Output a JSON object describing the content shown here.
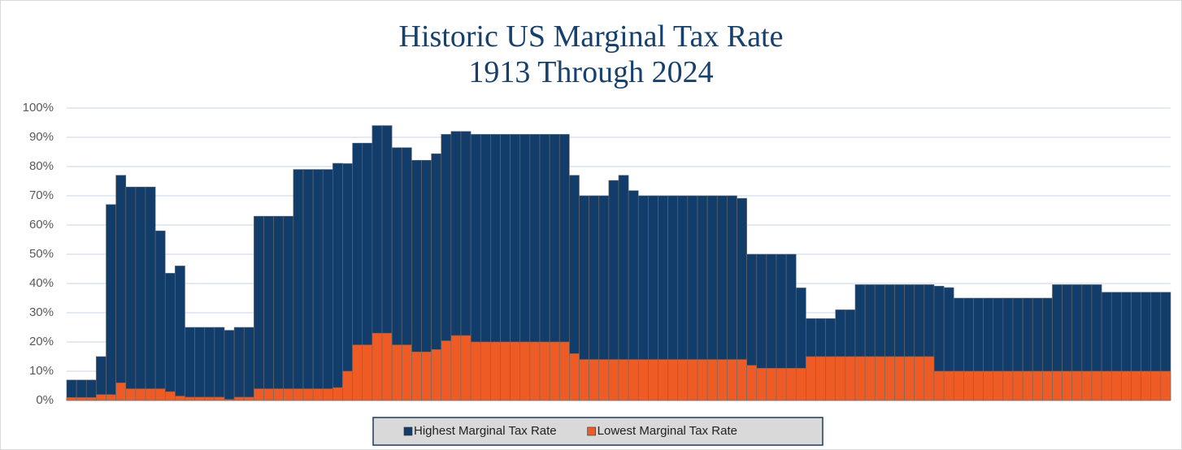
{
  "chart_data": {
    "type": "bar",
    "title": "Historic US Marginal Tax Rate",
    "subtitle": "1913 Through 2024",
    "categories": [
      null,
      null,
      null,
      null,
      null,
      null,
      null,
      null,
      null,
      null,
      null,
      null,
      null,
      null,
      null,
      null,
      null,
      null,
      null,
      null,
      null,
      null,
      null,
      null,
      null,
      null,
      null,
      null,
      null,
      null,
      null,
      null,
      null,
      null,
      null,
      null,
      null,
      null,
      null,
      null,
      null,
      null,
      null,
      null,
      null,
      null,
      null,
      null,
      null,
      null,
      null,
      null,
      null,
      null,
      null,
      null,
      null,
      null,
      null,
      null,
      null,
      null,
      null,
      null,
      null,
      null,
      null,
      null,
      null,
      null,
      null,
      null,
      null,
      null,
      null,
      null,
      null,
      null,
      null,
      null,
      null,
      null,
      null,
      null,
      null,
      null,
      null,
      null,
      null,
      null,
      null,
      null,
      null,
      null,
      null,
      null,
      null,
      null,
      null,
      null,
      null,
      null,
      null,
      null,
      null,
      null,
      null,
      null,
      null,
      null,
      null,
      null
    ],
    "series": [
      {
        "name": "Highest Marginal Tax Rate",
        "color": "#123d6b",
        "values": [
          7,
          7,
          7,
          15,
          67,
          77,
          73,
          73,
          73,
          58,
          43.5,
          46,
          25,
          25,
          25,
          25,
          24,
          25,
          25,
          63,
          63,
          63,
          63,
          79,
          79,
          79,
          79,
          81.1,
          81,
          88,
          88,
          94,
          94,
          86.45,
          86.45,
          82.13,
          82.13,
          84.36,
          91,
          92,
          92,
          91,
          91,
          91,
          91,
          91,
          91,
          91,
          91,
          91,
          91,
          77,
          70,
          70,
          70,
          75.25,
          77,
          71.75,
          70,
          70,
          70,
          70,
          70,
          70,
          70,
          70,
          70,
          70,
          69.13,
          50,
          50,
          50,
          50,
          50,
          38.5,
          28,
          28,
          28,
          31,
          31,
          39.6,
          39.6,
          39.6,
          39.6,
          39.6,
          39.6,
          39.6,
          39.6,
          39.1,
          38.6,
          35,
          35,
          35,
          35,
          35,
          35,
          35,
          35,
          35,
          35,
          39.6,
          39.6,
          39.6,
          39.6,
          39.6,
          37,
          37,
          37,
          37,
          37,
          37,
          37
        ]
      },
      {
        "name": "Lowest Marginal Tax Rate",
        "color": "#ef5b25",
        "values": [
          1,
          1,
          1,
          2,
          2,
          6,
          4,
          4,
          4,
          4,
          3,
          1.5,
          1.125,
          1.125,
          1.125,
          1.125,
          0.375,
          1.125,
          1.125,
          4,
          4,
          4,
          4,
          4,
          4,
          4,
          4,
          4.4,
          10,
          19,
          19,
          23,
          23,
          19,
          19,
          16.6,
          16.6,
          17.4,
          20.4,
          22.2,
          22.2,
          20,
          20,
          20,
          20,
          20,
          20,
          20,
          20,
          20,
          20,
          16,
          14,
          14,
          14,
          14,
          14,
          14,
          14,
          14,
          14,
          14,
          14,
          14,
          14,
          14,
          14,
          14,
          14,
          12,
          11,
          11,
          11,
          11,
          11,
          15,
          15,
          15,
          15,
          15,
          15,
          15,
          15,
          15,
          15,
          15,
          15,
          15,
          10,
          10,
          10,
          10,
          10,
          10,
          10,
          10,
          10,
          10,
          10,
          10,
          10,
          10,
          10,
          10,
          10,
          10,
          10,
          10,
          10,
          10,
          10,
          10
        ]
      }
    ],
    "ylim": [
      0,
      100
    ],
    "yticks": [
      {
        "value": 0,
        "label": "0%"
      },
      {
        "value": 10,
        "label": "10%"
      },
      {
        "value": 20,
        "label": "20%"
      },
      {
        "value": 30,
        "label": "30%"
      },
      {
        "value": 40,
        "label": "40%"
      },
      {
        "value": 50,
        "label": "50%"
      },
      {
        "value": 60,
        "label": "60%"
      },
      {
        "value": 70,
        "label": "70%"
      },
      {
        "value": 80,
        "label": "80%"
      },
      {
        "value": 90,
        "label": "90%"
      },
      {
        "value": 100,
        "label": "100%"
      }
    ],
    "grid": true,
    "legend": "bottom"
  }
}
